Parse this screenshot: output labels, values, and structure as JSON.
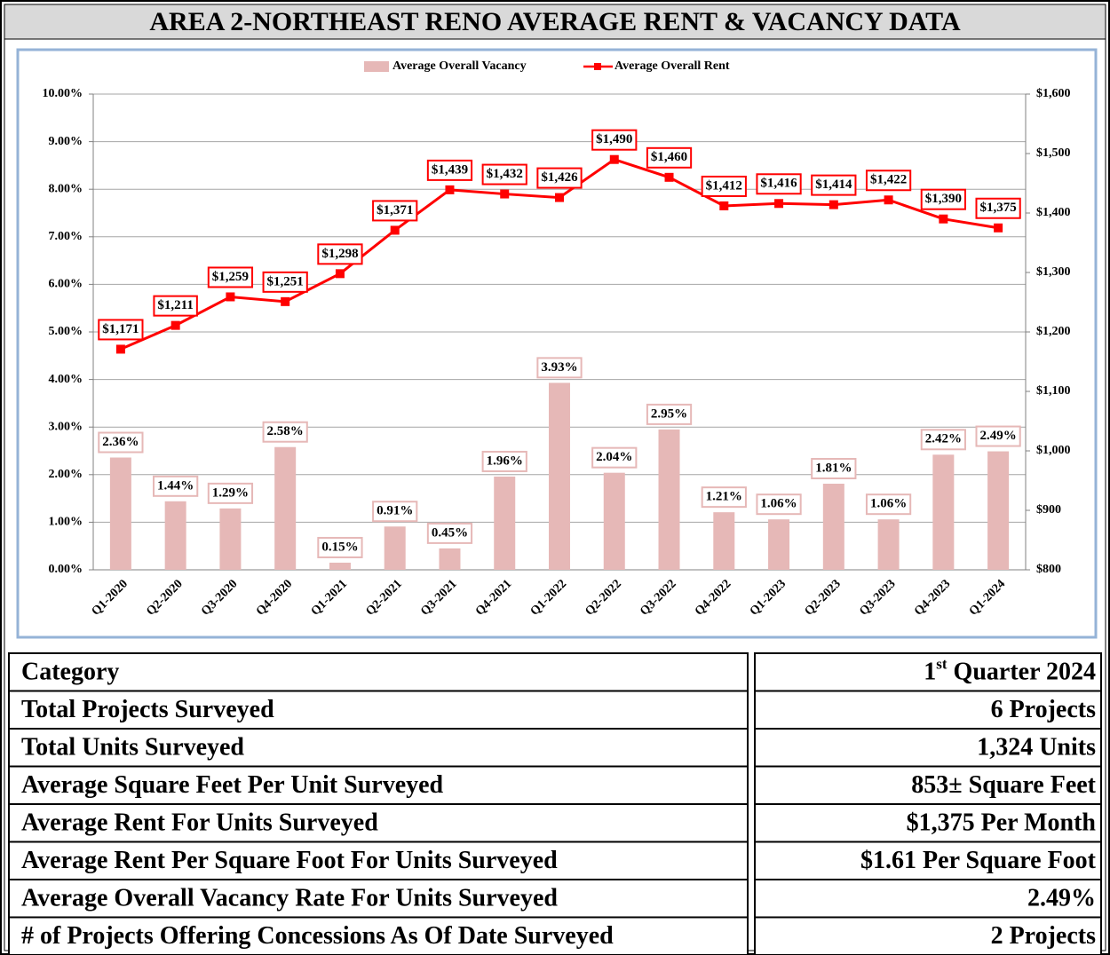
{
  "chart_data": {
    "type": "bar-line",
    "title": "AREA 2-NORTHEAST RENO AVERAGE RENT & VACANCY DATA",
    "categories": [
      "Q1-2020",
      "Q2-2020",
      "Q3-2020",
      "Q4-2020",
      "Q1-2021",
      "Q2-2021",
      "Q3-2021",
      "Q4-2021",
      "Q1-2022",
      "Q2-2022",
      "Q3-2022",
      "Q4-2022",
      "Q1-2023",
      "Q2-2023",
      "Q3-2023",
      "Q4-2023",
      "Q1-2024"
    ],
    "series": [
      {
        "name": "Average Overall Vacancy",
        "type": "bar",
        "color": "#e6b8b7",
        "axis": "y",
        "values": [
          2.36,
          1.44,
          1.29,
          2.58,
          0.15,
          0.91,
          0.45,
          1.96,
          3.93,
          2.04,
          2.95,
          1.21,
          1.06,
          1.81,
          1.06,
          2.42,
          2.49
        ],
        "value_labels": [
          "2.36%",
          "1.44%",
          "1.29%",
          "2.58%",
          "0.15%",
          "0.91%",
          "0.45%",
          "1.96%",
          "3.93%",
          "2.04%",
          "2.95%",
          "1.21%",
          "1.06%",
          "1.81%",
          "1.06%",
          "2.42%",
          "2.49%"
        ]
      },
      {
        "name": "Average Overall Rent",
        "type": "line",
        "color": "#ff0000",
        "axis": "y2",
        "values": [
          1171,
          1211,
          1259,
          1251,
          1298,
          1371,
          1439,
          1432,
          1426,
          1490,
          1460,
          1412,
          1416,
          1414,
          1422,
          1390,
          1375
        ],
        "value_labels": [
          "$1,171",
          "$1,211",
          "$1,259",
          "$1,251",
          "$1,298",
          "$1,371",
          "$1,439",
          "$1,432",
          "$1,426",
          "$1,490",
          "$1,460",
          "$1,412",
          "$1,416",
          "$1,414",
          "$1,422",
          "$1,390",
          "$1,375"
        ]
      }
    ],
    "ylim": [
      0,
      10
    ],
    "yticks": [
      {
        "value": 0,
        "label": "0.00%"
      },
      {
        "value": 1,
        "label": "1.00%"
      },
      {
        "value": 2,
        "label": "2.00%"
      },
      {
        "value": 3,
        "label": "3.00%"
      },
      {
        "value": 4,
        "label": "4.00%"
      },
      {
        "value": 5,
        "label": "5.00%"
      },
      {
        "value": 6,
        "label": "6.00%"
      },
      {
        "value": 7,
        "label": "7.00%"
      },
      {
        "value": 8,
        "label": "8.00%"
      },
      {
        "value": 9,
        "label": "9.00%"
      },
      {
        "value": 10,
        "label": "10.00%"
      }
    ],
    "y2lim": [
      800,
      1600
    ],
    "y2ticks": [
      {
        "value": 800,
        "label": "$800"
      },
      {
        "value": 900,
        "label": "$900"
      },
      {
        "value": 1000,
        "label": "$1,000"
      },
      {
        "value": 1100,
        "label": "$1,100"
      },
      {
        "value": 1200,
        "label": "$1,200"
      },
      {
        "value": 1300,
        "label": "$1,300"
      },
      {
        "value": 1400,
        "label": "$1,400"
      },
      {
        "value": 1500,
        "label": "$1,500"
      },
      {
        "value": 1600,
        "label": "$1,600"
      }
    ],
    "grid": true,
    "legend": "top"
  },
  "table": {
    "header": [
      "Category",
      [
        "1",
        "st",
        " Quarter 2024"
      ]
    ],
    "rows": [
      [
        "Total Projects Surveyed",
        "6 Projects"
      ],
      [
        "Total Units Surveyed",
        "1,324 Units"
      ],
      [
        "Average Square Feet Per Unit Surveyed",
        "853± Square Feet"
      ],
      [
        "Average Rent For Units Surveyed",
        "$1,375 Per Month"
      ],
      [
        "Average Rent Per Square Foot For Units Surveyed",
        "$1.61 Per Square Foot"
      ],
      [
        "Average Overall Vacancy Rate For Units Surveyed",
        "2.49%"
      ],
      [
        "# of Projects Offering Concessions As Of Date Surveyed",
        "2 Projects"
      ]
    ]
  }
}
